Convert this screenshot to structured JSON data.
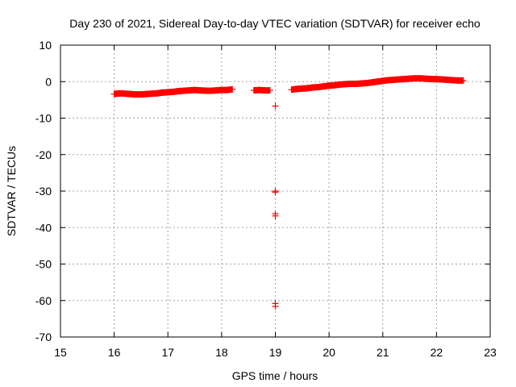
{
  "chart_data": {
    "type": "scatter",
    "title": "Day 230 of 2021, Sidereal Day-to-day VTEC variation (SDTVAR) for receiver echo",
    "xlabel": "GPS time / hours",
    "ylabel": "SDTVAR / TECUs",
    "xlim": [
      15,
      23
    ],
    "ylim": [
      -70,
      10
    ],
    "xticks": [
      15,
      16,
      17,
      18,
      19,
      20,
      21,
      22,
      23
    ],
    "yticks": [
      10,
      0,
      -10,
      -20,
      -30,
      -40,
      -50,
      -60,
      -70
    ],
    "grid": true,
    "marker": "plus",
    "color": "#ff0000",
    "series": [
      {
        "name": "SDTVAR",
        "points": [
          [
            16.0,
            -3.4
          ],
          [
            16.1,
            -3.2
          ],
          [
            16.2,
            -3.3
          ],
          [
            16.3,
            -3.4
          ],
          [
            16.4,
            -3.5
          ],
          [
            16.5,
            -3.5
          ],
          [
            16.6,
            -3.4
          ],
          [
            16.7,
            -3.3
          ],
          [
            16.8,
            -3.2
          ],
          [
            16.9,
            -3.0
          ],
          [
            17.0,
            -2.9
          ],
          [
            17.1,
            -2.8
          ],
          [
            17.2,
            -2.6
          ],
          [
            17.3,
            -2.5
          ],
          [
            17.4,
            -2.4
          ],
          [
            17.5,
            -2.3
          ],
          [
            17.6,
            -2.4
          ],
          [
            17.7,
            -2.5
          ],
          [
            17.8,
            -2.5
          ],
          [
            17.9,
            -2.4
          ],
          [
            18.0,
            -2.3
          ],
          [
            18.1,
            -2.3
          ],
          [
            18.2,
            -2.1
          ],
          [
            18.6,
            -2.4
          ],
          [
            18.7,
            -2.3
          ],
          [
            18.8,
            -2.4
          ],
          [
            18.9,
            -2.4
          ],
          [
            19.0,
            -6.7
          ],
          [
            19.0,
            -30.0
          ],
          [
            19.0,
            -30.3
          ],
          [
            19.0,
            -36.2
          ],
          [
            19.0,
            -36.8
          ],
          [
            19.0,
            -60.8
          ],
          [
            19.0,
            -61.6
          ],
          [
            19.3,
            -2.2
          ],
          [
            19.4,
            -2.0
          ],
          [
            19.5,
            -1.9
          ],
          [
            19.6,
            -1.8
          ],
          [
            19.7,
            -1.6
          ],
          [
            19.8,
            -1.5
          ],
          [
            19.9,
            -1.3
          ],
          [
            20.0,
            -1.1
          ],
          [
            20.1,
            -1.0
          ],
          [
            20.2,
            -0.8
          ],
          [
            20.3,
            -0.7
          ],
          [
            20.4,
            -0.6
          ],
          [
            20.5,
            -0.6
          ],
          [
            20.6,
            -0.5
          ],
          [
            20.7,
            -0.4
          ],
          [
            20.8,
            -0.2
          ],
          [
            20.9,
            0.0
          ],
          [
            21.0,
            0.2
          ],
          [
            21.1,
            0.4
          ],
          [
            21.2,
            0.5
          ],
          [
            21.3,
            0.6
          ],
          [
            21.4,
            0.7
          ],
          [
            21.5,
            0.8
          ],
          [
            21.6,
            0.9
          ],
          [
            21.7,
            0.9
          ],
          [
            21.8,
            0.8
          ],
          [
            21.9,
            0.7
          ],
          [
            22.0,
            0.7
          ],
          [
            22.1,
            0.6
          ],
          [
            22.2,
            0.5
          ],
          [
            22.3,
            0.4
          ],
          [
            22.4,
            0.3
          ],
          [
            22.5,
            0.3
          ]
        ]
      }
    ]
  }
}
